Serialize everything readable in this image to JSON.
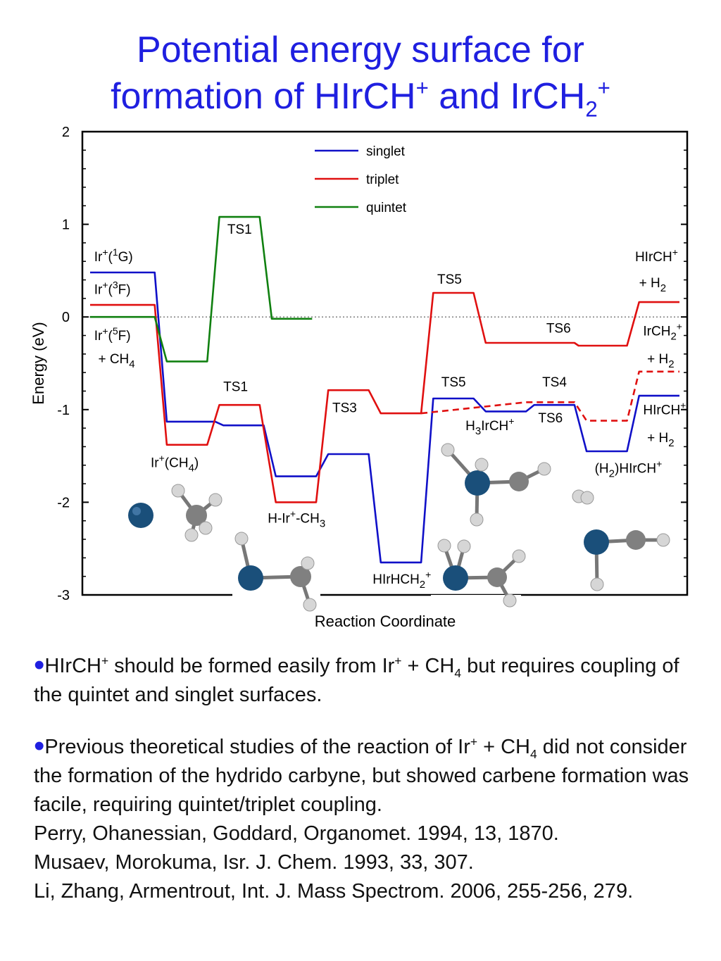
{
  "title": {
    "line1": "Potential energy surface for",
    "line2_pre": "formation of HIrCH",
    "line2_sup1": "+",
    "line2_mid": " and IrCH",
    "line2_sub": "2",
    "line2_sup2": "+"
  },
  "chart_data": {
    "type": "line",
    "title": "",
    "xlabel": "Reaction Coordinate",
    "ylabel": "Energy (eV)",
    "ylim": [
      -3,
      2
    ],
    "yticks": [
      "2",
      "1",
      "0",
      "-1",
      "-2",
      "-3"
    ],
    "grid": false,
    "legend": {
      "placement": "top-center",
      "entries": [
        "singlet",
        "triplet",
        "quintet"
      ]
    },
    "colors": {
      "singlet": "#1010c8",
      "triplet": "#e01010",
      "quintet": "#108010",
      "zero_line": "#555555"
    },
    "series": [
      {
        "name": "singlet",
        "style": "solid",
        "points": [
          [
            0,
            0.48
          ],
          [
            32,
            0.48
          ],
          [
            38,
            -1.13
          ],
          [
            62,
            -1.13
          ],
          [
            66,
            -1.17
          ],
          [
            86,
            -1.17
          ],
          [
            92,
            -1.72
          ],
          [
            112,
            -1.72
          ],
          [
            118,
            -1.48
          ],
          [
            138,
            -1.48
          ],
          [
            144,
            -2.65
          ],
          [
            164,
            -2.65
          ],
          [
            170,
            -0.88
          ],
          [
            190,
            -0.88
          ],
          [
            196,
            -1.02
          ],
          [
            216,
            -1.02
          ],
          [
            220,
            -0.95
          ],
          [
            240,
            -0.95
          ],
          [
            246,
            -1.45
          ],
          [
            266,
            -1.45
          ],
          [
            272,
            -0.85
          ],
          [
            292,
            -0.85
          ]
        ]
      },
      {
        "name": "triplet",
        "style": "solid",
        "points": [
          [
            0,
            0.13
          ],
          [
            32,
            0.13
          ],
          [
            38,
            -1.38
          ],
          [
            58,
            -1.38
          ],
          [
            64,
            -0.95
          ],
          [
            84,
            -0.95
          ],
          [
            92,
            -2.0
          ],
          [
            112,
            -2.0
          ],
          [
            118,
            -0.79
          ],
          [
            138,
            -0.79
          ],
          [
            144,
            -1.04
          ],
          [
            164,
            -1.04
          ],
          [
            170,
            0.26
          ],
          [
            190,
            0.26
          ],
          [
            196,
            -0.28
          ],
          [
            216,
            -0.28
          ],
          [
            220,
            -0.28
          ],
          [
            240,
            -0.28
          ],
          [
            242,
            -0.31
          ],
          [
            266,
            -0.31
          ],
          [
            272,
            0.16
          ],
          [
            292,
            0.16
          ]
        ]
      },
      {
        "name": "triplet",
        "style": "dashed",
        "points": [
          [
            164,
            -1.04
          ],
          [
            216,
            -0.92
          ],
          [
            240,
            -0.92
          ],
          [
            246,
            -1.12
          ],
          [
            266,
            -1.12
          ],
          [
            272,
            -0.59
          ],
          [
            292,
            -0.59
          ]
        ]
      },
      {
        "name": "quintet",
        "style": "solid",
        "points": [
          [
            0,
            0.0
          ],
          [
            32,
            0.0
          ],
          [
            38,
            -0.48
          ],
          [
            58,
            -0.48
          ],
          [
            64,
            1.08
          ],
          [
            84,
            1.08
          ],
          [
            90,
            -0.02
          ],
          [
            110,
            -0.02
          ]
        ]
      }
    ],
    "annotations": [
      {
        "key": "ir_1g",
        "x": 2,
        "y": 0.6,
        "parts": [
          [
            "Ir",
            ""
          ],
          [
            "+",
            "sup"
          ],
          [
            "(",
            ""
          ],
          [
            "1",
            "sup"
          ],
          [
            "G)",
            ""
          ]
        ]
      },
      {
        "key": "ir_3f",
        "x": 2,
        "y": 0.25,
        "parts": [
          [
            "Ir",
            ""
          ],
          [
            "+",
            "sup"
          ],
          [
            "(",
            ""
          ],
          [
            "3",
            "sup"
          ],
          [
            "F)",
            ""
          ]
        ]
      },
      {
        "key": "ir_5f",
        "x": 2,
        "y": -0.25,
        "parts": [
          [
            "Ir",
            ""
          ],
          [
            "+",
            "sup"
          ],
          [
            "(",
            ""
          ],
          [
            "5",
            "sup"
          ],
          [
            "F)",
            ""
          ]
        ]
      },
      {
        "key": "plus_ch4",
        "x": 4,
        "y": -0.5,
        "parts": [
          [
            "+ CH",
            ""
          ],
          [
            "4",
            "sub"
          ]
        ]
      },
      {
        "key": "ts1_q",
        "x": 68,
        "y": 0.9,
        "parts": [
          [
            "TS1",
            ""
          ]
        ]
      },
      {
        "key": "ts1_t",
        "x": 66,
        "y": -0.8,
        "parts": [
          [
            "TS1",
            ""
          ]
        ]
      },
      {
        "key": "ir_ch4",
        "x": 30,
        "y": -1.62,
        "parts": [
          [
            "Ir",
            ""
          ],
          [
            "+",
            "sup"
          ],
          [
            "(CH",
            ""
          ],
          [
            "4",
            "sub"
          ],
          [
            ")",
            ""
          ]
        ]
      },
      {
        "key": "h_ir_ch3",
        "x": 88,
        "y": -2.22,
        "parts": [
          [
            "H-Ir",
            ""
          ],
          [
            "+",
            "sup"
          ],
          [
            "-CH",
            ""
          ],
          [
            "3",
            "sub"
          ]
        ]
      },
      {
        "key": "ts3",
        "x": 120,
        "y": -1.03,
        "parts": [
          [
            "TS3",
            ""
          ]
        ]
      },
      {
        "key": "hirhch2",
        "x": 140,
        "y": -2.88,
        "parts": [
          [
            "HIrHCH",
            ""
          ],
          [
            "2",
            "sub"
          ],
          [
            "+",
            "sup"
          ]
        ]
      },
      {
        "key": "ts5_t",
        "x": 172,
        "y": 0.36,
        "parts": [
          [
            "TS5",
            ""
          ]
        ]
      },
      {
        "key": "ts5_s",
        "x": 174,
        "y": -0.75,
        "parts": [
          [
            "TS5",
            ""
          ]
        ]
      },
      {
        "key": "ts6_t",
        "x": 226,
        "y": -0.17,
        "parts": [
          [
            "TS6",
            ""
          ]
        ]
      },
      {
        "key": "ts4",
        "x": 224,
        "y": -0.75,
        "parts": [
          [
            "TS4",
            ""
          ]
        ]
      },
      {
        "key": "h3irch",
        "x": 186,
        "y": -1.22,
        "parts": [
          [
            "H",
            ""
          ],
          [
            "3",
            "sub"
          ],
          [
            "IrCH",
            ""
          ],
          [
            "+",
            "sup"
          ]
        ]
      },
      {
        "key": "ts6_s",
        "x": 222,
        "y": -1.14,
        "parts": [
          [
            "TS6",
            ""
          ]
        ]
      },
      {
        "key": "h2hirch",
        "x": 250,
        "y": -1.68,
        "parts": [
          [
            "(H",
            ""
          ],
          [
            "2",
            "sub"
          ],
          [
            ")HIrCH",
            ""
          ],
          [
            "+",
            "sup"
          ]
        ]
      },
      {
        "key": "hirch_top",
        "x": 270,
        "y": 0.6,
        "parts": [
          [
            "HIrCH",
            ""
          ],
          [
            "+",
            "sup"
          ]
        ]
      },
      {
        "key": "plus_h2_top",
        "x": 272,
        "y": 0.32,
        "parts": [
          [
            "+ H",
            ""
          ],
          [
            "2",
            "sub"
          ]
        ]
      },
      {
        "key": "irch2",
        "x": 274,
        "y": -0.2,
        "parts": [
          [
            "IrCH",
            ""
          ],
          [
            "2",
            "sub"
          ],
          [
            "+",
            "sup"
          ]
        ]
      },
      {
        "key": "plus_h2_mid",
        "x": 276,
        "y": -0.5,
        "parts": [
          [
            "+ H",
            ""
          ],
          [
            "2",
            "sub"
          ]
        ]
      },
      {
        "key": "hirch_bot",
        "x": 274,
        "y": -1.05,
        "parts": [
          [
            "HIrCH",
            ""
          ],
          [
            "+",
            "sup"
          ]
        ]
      },
      {
        "key": "plus_h2_bot",
        "x": 276,
        "y": -1.35,
        "parts": [
          [
            "+ H",
            ""
          ],
          [
            "2",
            "sub"
          ]
        ]
      }
    ]
  },
  "bullets": [
    {
      "parts": [
        [
          "HIrCH",
          ""
        ],
        [
          "+",
          "sup"
        ],
        [
          " should be formed easily from Ir",
          ""
        ],
        [
          "+",
          "sup"
        ],
        [
          " + CH",
          ""
        ],
        [
          "4",
          "sub"
        ],
        [
          " but requires coupling of the quintet and singlet surfaces.",
          ""
        ]
      ]
    },
    {
      "parts": [
        [
          "Previous theoretical studies of the reaction of Ir",
          ""
        ],
        [
          "+",
          "sup"
        ],
        [
          " + CH",
          ""
        ],
        [
          "4",
          "sub"
        ],
        [
          " did not consider the formation of the hydrido carbyne, but showed carbene formation was facile, requiring quintet/triplet coupling.",
          ""
        ]
      ]
    }
  ],
  "references": [
    "Perry, Ohanessian, Goddard, Organomet. 1994, 13, 1870.",
    "Musaev, Morokuma, Isr. J. Chem. 1993, 33, 307.",
    "Li, Zhang, Armentrout, Int. J. Mass Spectrom. 2006, 255-256, 279."
  ]
}
